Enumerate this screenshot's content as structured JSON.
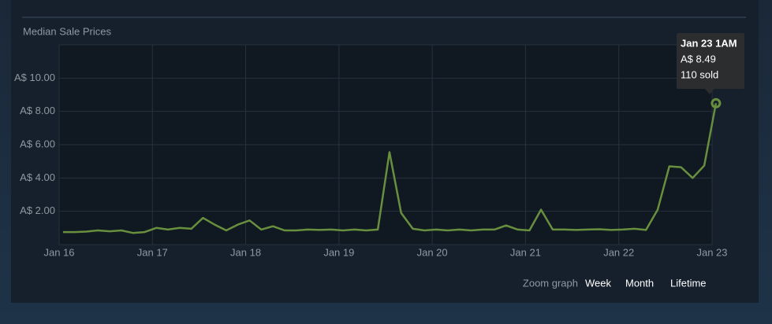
{
  "chart_data": {
    "type": "line",
    "title": "Median Sale Prices",
    "x": [
      "Jan 16 1AM",
      "Jan 16 4AM",
      "Jan 16 7AM",
      "Jan 16 10AM",
      "Jan 16 1PM",
      "Jan 16 4PM",
      "Jan 16 7PM",
      "Jan 16 10PM",
      "Jan 17 1AM",
      "Jan 17 4AM",
      "Jan 17 7AM",
      "Jan 17 10AM",
      "Jan 17 1PM",
      "Jan 17 4PM",
      "Jan 17 7PM",
      "Jan 17 10PM",
      "Jan 18 1AM",
      "Jan 18 4AM",
      "Jan 18 7AM",
      "Jan 18 10AM",
      "Jan 18 1PM",
      "Jan 18 4PM",
      "Jan 18 7PM",
      "Jan 18 10PM",
      "Jan 19 1AM",
      "Jan 19 4AM",
      "Jan 19 7AM",
      "Jan 19 10AM",
      "Jan 19 1PM",
      "Jan 19 4PM",
      "Jan 19 7PM",
      "Jan 19 10PM",
      "Jan 20 1AM",
      "Jan 20 4AM",
      "Jan 20 7AM",
      "Jan 20 10AM",
      "Jan 20 1PM",
      "Jan 20 4PM",
      "Jan 20 7PM",
      "Jan 20 10PM",
      "Jan 21 1AM",
      "Jan 21 4AM",
      "Jan 21 7AM",
      "Jan 21 10AM",
      "Jan 21 1PM",
      "Jan 21 4PM",
      "Jan 21 7PM",
      "Jan 21 10PM",
      "Jan 22 1AM",
      "Jan 22 4AM",
      "Jan 22 7AM",
      "Jan 22 10AM",
      "Jan 22 1PM",
      "Jan 22 4PM",
      "Jan 22 7PM",
      "Jan 22 10PM",
      "Jan 23 1AM"
    ],
    "series": [
      {
        "color": "#688f3e",
        "values": [
          0.75,
          0.75,
          0.78,
          0.85,
          0.8,
          0.85,
          0.7,
          0.75,
          1.0,
          0.9,
          1.0,
          0.95,
          1.6,
          1.2,
          0.85,
          1.2,
          1.45,
          0.9,
          1.1,
          0.85,
          0.85,
          0.9,
          0.88,
          0.9,
          0.85,
          0.9,
          0.85,
          0.9,
          5.55,
          1.9,
          0.95,
          0.85,
          0.9,
          0.85,
          0.9,
          0.85,
          0.9,
          0.9,
          1.15,
          0.9,
          0.85,
          2.1,
          0.9,
          0.9,
          0.88,
          0.9,
          0.92,
          0.88,
          0.9,
          0.95,
          0.88,
          2.1,
          4.7,
          4.65,
          4.0,
          4.75,
          8.49
        ]
      }
    ],
    "xlim": [
      "Jan 16",
      "Jan 23"
    ],
    "xticks": [
      "Jan 16",
      "Jan 17",
      "Jan 18",
      "Jan 19",
      "Jan 20",
      "Jan 21",
      "Jan 22",
      "Jan 23"
    ],
    "ylim": [
      0,
      12
    ],
    "yticks": [
      {
        "value": 2,
        "label": "A$ 2.00"
      },
      {
        "value": 4,
        "label": "A$ 4.00"
      },
      {
        "value": 6,
        "label": "A$ 6.00"
      },
      {
        "value": 8,
        "label": "A$ 8.00"
      },
      {
        "value": 10,
        "label": "A$ 10.00"
      }
    ],
    "grid": true,
    "tooltip": {
      "date": "Jan 23 1AM",
      "price": "A$ 8.49",
      "sold": "110 sold"
    }
  },
  "zoom": {
    "label": "Zoom graph",
    "options": [
      "Week",
      "Month",
      "Lifetime"
    ]
  }
}
